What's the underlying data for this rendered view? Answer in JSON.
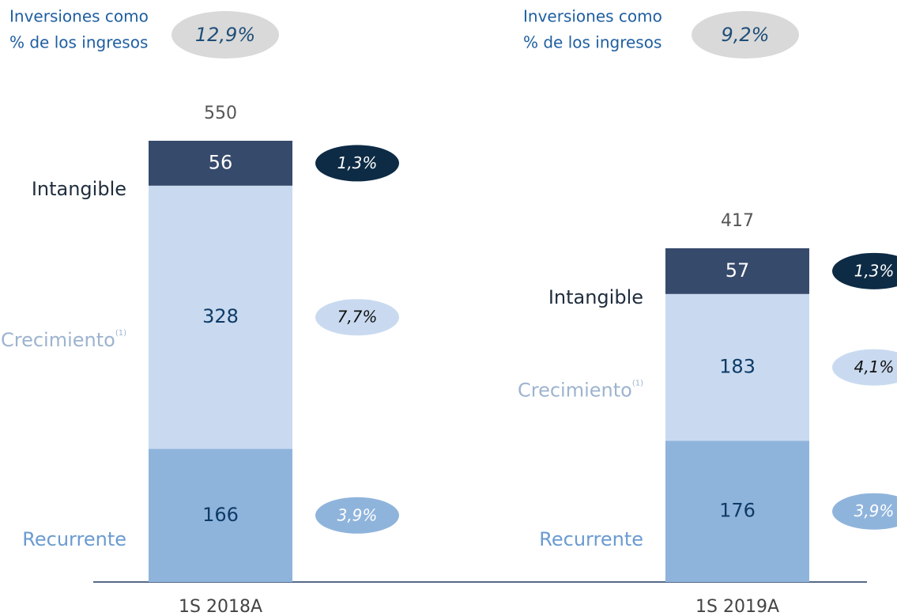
{
  "chart_data": {
    "type": "bar",
    "stacked": true,
    "categories": [
      "1S 2018A",
      "1S 2019A"
    ],
    "series": [
      {
        "name": "Recurrente",
        "color": "#8fb4dc",
        "label_color": "#6a9bd1",
        "share_color": "#8fb4dc",
        "values": [
          166,
          176
        ],
        "share_values": [
          3.9,
          3.9
        ],
        "share_labels": [
          "3,9%",
          "3,9%"
        ]
      },
      {
        "name": "Crecimiento",
        "note_marker": "(1)",
        "color": "#c9daf0",
        "label_color": "#9db3cf",
        "share_color": "#c9daf0",
        "values": [
          328,
          183
        ],
        "share_values": [
          7.7,
          4.1
        ],
        "share_labels": [
          "7,7%",
          "4,1%"
        ]
      },
      {
        "name": "Intangible",
        "color": "#364a6b",
        "label_color": "#1f2d3d",
        "share_color": "#0d2b45",
        "values": [
          56,
          57
        ],
        "share_values": [
          1.3,
          1.3
        ],
        "share_labels": [
          "1,3%",
          "1,3%"
        ]
      }
    ],
    "totals": [
      550,
      417
    ],
    "investment_share_label": [
      "Inversiones como",
      "% de los ingresos"
    ],
    "investment_share": [
      12.9,
      9.2
    ],
    "investment_share_labels": [
      "12,9%",
      "9,2%"
    ],
    "ylim": [
      0,
      550
    ]
  }
}
